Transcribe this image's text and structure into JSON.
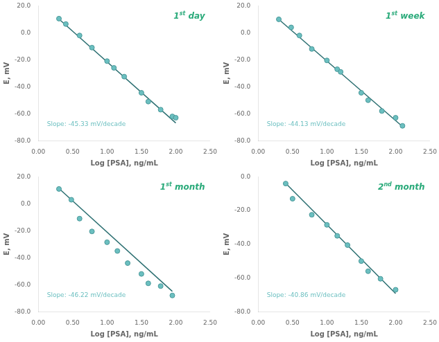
{
  "chart_data": [
    {
      "type": "scatter",
      "xlabel": "Log [PSA], ng/mL",
      "ylabel": "E, mV",
      "series": [
        {
          "type": "scatter",
          "color": "#6BBFC0",
          "edge_color": "#4A9899",
          "x": [
            0.3,
            0.4,
            0.6,
            0.78,
            1.0,
            1.1,
            1.25,
            1.5,
            1.6,
            1.78,
            1.95,
            2.0
          ],
          "values": [
            10.5,
            6.5,
            -2.0,
            -11.0,
            -21.0,
            -26.0,
            -32.5,
            -44.5,
            -51.0,
            -57.0,
            -62.0,
            -63.0
          ]
        },
        {
          "type": "line",
          "color": "#2A6E70",
          "x": [
            0.3,
            2.0
          ],
          "values": [
            10.201,
            -66.86
          ]
        }
      ],
      "annotations": [
        {
          "text": "Slope: -45.33 mV/decade",
          "color": "#6BBFC0"
        },
        {
          "text": "1st day",
          "superscript": "st",
          "color": "#2AAA7A"
        }
      ],
      "xlim": [
        0.0,
        2.5
      ],
      "ylim": [
        -80.0,
        20.0
      ],
      "xticks": [
        {
          "value": 0,
          "label": "0.00"
        },
        {
          "value": 0.5,
          "label": "0.50"
        },
        {
          "value": 1,
          "label": "1.00"
        },
        {
          "value": 1.5,
          "label": "1.50"
        },
        {
          "value": 2,
          "label": "2.00"
        },
        {
          "value": 2.5,
          "label": "2.50"
        }
      ],
      "yticks": [
        {
          "value": -80,
          "label": "-80.0"
        },
        {
          "value": -60,
          "label": "-60.0"
        },
        {
          "value": -40,
          "label": "-40.0"
        },
        {
          "value": -20,
          "label": "-20.0"
        },
        {
          "value": 0,
          "label": "0.0"
        },
        {
          "value": 20,
          "label": "20.0"
        }
      ],
      "grid": false
    },
    {
      "type": "scatter",
      "xlabel": "Log [PSA], ng/mL",
      "ylabel": "E, mV",
      "series": [
        {
          "type": "scatter",
          "color": "#6BBFC0",
          "edge_color": "#4A9899",
          "x": [
            0.3,
            0.48,
            0.6,
            0.78,
            1.0,
            1.15,
            1.2,
            1.5,
            1.6,
            1.8,
            2.0,
            2.1
          ],
          "values": [
            10.0,
            4.0,
            -2.0,
            -12.0,
            -20.5,
            -27.0,
            -29.0,
            -44.5,
            -50.0,
            -58.0,
            -63.0,
            -69.0
          ]
        },
        {
          "type": "line",
          "color": "#2A6E70",
          "x": [
            0.3,
            2.1
          ],
          "values": [
            9.961,
            -69.473
          ]
        }
      ],
      "annotations": [
        {
          "text": "Slope: -44.13 mV/decade",
          "color": "#6BBFC0"
        },
        {
          "text": "1st week",
          "superscript": "st",
          "color": "#2AAA7A"
        }
      ],
      "xlim": [
        0.0,
        2.5
      ],
      "ylim": [
        -80.0,
        20.0
      ],
      "xticks": [
        {
          "value": 0,
          "label": "0.00"
        },
        {
          "value": 0.5,
          "label": "0.50"
        },
        {
          "value": 1,
          "label": "1.00"
        },
        {
          "value": 1.5,
          "label": "1.50"
        },
        {
          "value": 2,
          "label": "2.00"
        },
        {
          "value": 2.5,
          "label": "2.50"
        }
      ],
      "yticks": [
        {
          "value": -80,
          "label": "-80.0"
        },
        {
          "value": -60,
          "label": "-60.0"
        },
        {
          "value": -40,
          "label": "-40.0"
        },
        {
          "value": -20,
          "label": "-20.0"
        },
        {
          "value": 0,
          "label": "0.0"
        },
        {
          "value": 20,
          "label": "20.0"
        }
      ],
      "grid": false
    },
    {
      "type": "scatter",
      "xlabel": "Log [PSA], ng/mL",
      "ylabel": "E, mV",
      "series": [
        {
          "type": "scatter",
          "color": "#6BBFC0",
          "edge_color": "#4A9899",
          "x": [
            0.3,
            0.48,
            0.6,
            0.78,
            1.0,
            1.15,
            1.3,
            1.5,
            1.6,
            1.78,
            1.95
          ],
          "values": [
            11.0,
            3.0,
            -11.0,
            -20.5,
            -28.5,
            -35.0,
            -44.0,
            -52.0,
            -59.0,
            -61.0,
            -68.0
          ]
        },
        {
          "type": "line",
          "color": "#2A6E70",
          "x": [
            0.3,
            1.95
          ],
          "values": [
            11.334,
            -64.929
          ]
        }
      ],
      "annotations": [
        {
          "text": "Slope: -46.22 mV/decade",
          "color": "#6BBFC0"
        },
        {
          "text": "1st month",
          "superscript": "st",
          "color": "#2AAA7A"
        }
      ],
      "xlim": [
        0.0,
        2.5
      ],
      "ylim": [
        -80.0,
        20.0
      ],
      "xticks": [
        {
          "value": 0,
          "label": "0.00"
        },
        {
          "value": 0.5,
          "label": "0.50"
        },
        {
          "value": 1,
          "label": "1.00"
        },
        {
          "value": 1.5,
          "label": "1.50"
        },
        {
          "value": 2,
          "label": "2.00"
        },
        {
          "value": 2.5,
          "label": "2.50"
        }
      ],
      "yticks": [
        {
          "value": -80,
          "label": "-80.0"
        },
        {
          "value": -60,
          "label": "-60.0"
        },
        {
          "value": -40,
          "label": "-40.0"
        },
        {
          "value": -20,
          "label": "-20.0"
        },
        {
          "value": 0,
          "label": "0.0"
        },
        {
          "value": 20,
          "label": "20.0"
        }
      ],
      "grid": false
    },
    {
      "type": "scatter",
      "xlabel": "Log [PSA], ng/mL",
      "ylabel": "E, mV",
      "series": [
        {
          "type": "scatter",
          "color": "#6BBFC0",
          "edge_color": "#4A9899",
          "x": [
            0.4,
            0.5,
            0.78,
            1.0,
            1.15,
            1.3,
            1.5,
            1.6,
            1.78,
            2.0
          ],
          "values": [
            -4.0,
            -13.0,
            -22.5,
            -28.5,
            -35.0,
            -40.5,
            -50.0,
            -56.0,
            -60.5,
            -67.0
          ]
        },
        {
          "type": "line",
          "color": "#2A6E70",
          "x": [
            0.4,
            2.0
          ],
          "values": [
            -3.844,
            -69.22
          ]
        }
      ],
      "annotations": [
        {
          "text": "Slope: -40.86 mV/decade",
          "color": "#6BBFC0"
        },
        {
          "text": "2nd month",
          "superscript": "nd",
          "color": "#2AAA7A"
        }
      ],
      "xlim": [
        0.0,
        2.5
      ],
      "ylim": [
        -80.0,
        0.0
      ],
      "xticks": [
        {
          "value": 0,
          "label": "0.00"
        },
        {
          "value": 0.5,
          "label": "0.50"
        },
        {
          "value": 1,
          "label": "1.00"
        },
        {
          "value": 1.5,
          "label": "1.50"
        },
        {
          "value": 2,
          "label": "2.00"
        },
        {
          "value": 2.5,
          "label": "2.50"
        }
      ],
      "yticks": [
        {
          "value": -80,
          "label": "-80.0"
        },
        {
          "value": -60,
          "label": "-60.0"
        },
        {
          "value": -40,
          "label": "-40.0"
        },
        {
          "value": -20,
          "label": "-20.0"
        },
        {
          "value": 0,
          "label": "0.0"
        }
      ],
      "grid": false
    }
  ]
}
